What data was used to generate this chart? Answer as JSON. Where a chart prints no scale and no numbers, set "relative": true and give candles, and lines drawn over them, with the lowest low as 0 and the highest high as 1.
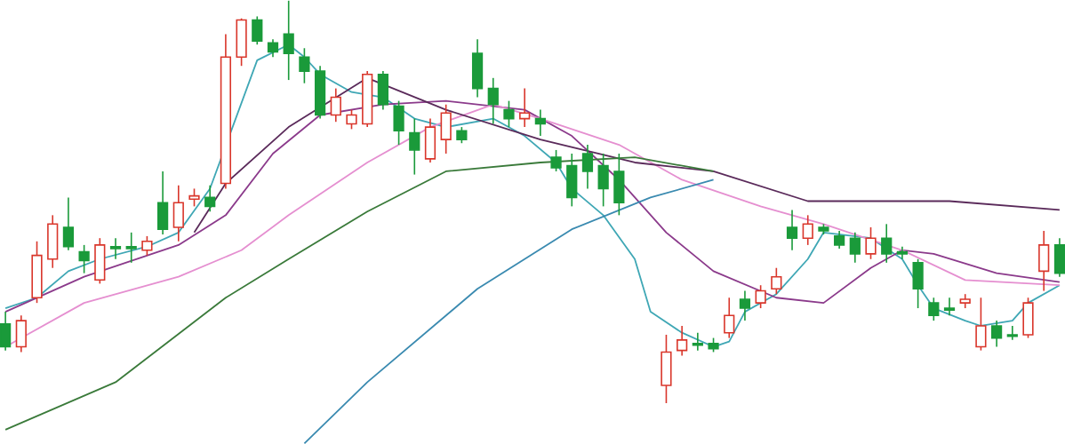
{
  "chart_data": {
    "type": "candlestick",
    "relative": true,
    "categories": [
      null,
      null,
      null,
      null,
      null,
      null,
      null,
      null,
      null,
      null,
      null,
      null,
      null,
      null,
      null,
      null,
      null,
      null,
      null,
      null,
      null,
      null,
      null,
      null,
      null,
      null,
      null,
      null,
      null,
      null,
      null,
      null,
      null,
      null,
      null,
      null,
      null,
      null,
      null,
      null,
      null,
      null,
      null,
      null,
      null,
      null,
      null,
      null,
      null,
      null,
      null,
      null,
      null,
      null,
      null,
      null,
      null,
      null,
      null,
      null,
      null,
      null,
      null,
      null,
      null,
      null,
      null,
      null
    ],
    "ohlc": [
      [
        0.197,
        0.227,
        0.131,
        0.14
      ],
      [
        0.14,
        0.218,
        0.127,
        0.205
      ],
      [
        0.262,
        0.402,
        0.249,
        0.367
      ],
      [
        0.358,
        0.467,
        0.336,
        0.445
      ],
      [
        0.437,
        0.511,
        0.38,
        0.389
      ],
      [
        0.376,
        0.393,
        0.323,
        0.354
      ],
      [
        0.306,
        0.41,
        0.297,
        0.393
      ],
      [
        0.389,
        0.41,
        0.358,
        0.384
      ],
      [
        0.389,
        0.424,
        0.349,
        0.384
      ],
      [
        0.38,
        0.415,
        0.367,
        0.402
      ],
      [
        0.498,
        0.576,
        0.419,
        0.432
      ],
      [
        0.437,
        0.541,
        0.402,
        0.498
      ],
      [
        0.507,
        0.533,
        0.489,
        0.515
      ],
      [
        0.511,
        0.541,
        0.476,
        0.489
      ],
      [
        0.546,
        0.917,
        0.533,
        0.86
      ],
      [
        0.86,
        0.956,
        0.838,
        0.952
      ],
      [
        0.952,
        0.961,
        0.891,
        0.9
      ],
      [
        0.895,
        0.904,
        0.86,
        0.873
      ],
      [
        0.917,
        1.0,
        0.803,
        0.869
      ],
      [
        0.86,
        0.882,
        0.795,
        0.825
      ],
      [
        0.825,
        0.838,
        0.707,
        0.716
      ],
      [
        0.716,
        0.782,
        0.699,
        0.76
      ],
      [
        0.694,
        0.729,
        0.681,
        0.716
      ],
      [
        0.694,
        0.825,
        0.686,
        0.817
      ],
      [
        0.817,
        0.825,
        0.729,
        0.742
      ],
      [
        0.738,
        0.751,
        0.642,
        0.677
      ],
      [
        0.672,
        0.707,
        0.568,
        0.629
      ],
      [
        0.607,
        0.707,
        0.598,
        0.686
      ],
      [
        0.655,
        0.742,
        0.62,
        0.721
      ],
      [
        0.677,
        0.686,
        0.646,
        0.655
      ],
      [
        0.869,
        0.904,
        0.76,
        0.782
      ],
      [
        0.782,
        0.808,
        0.694,
        0.742
      ],
      [
        0.729,
        0.751,
        0.686,
        0.707
      ],
      [
        0.707,
        0.782,
        0.686,
        0.721
      ],
      [
        0.707,
        0.729,
        0.664,
        0.694
      ],
      [
        0.611,
        0.629,
        0.576,
        0.585
      ],
      [
        0.59,
        0.62,
        0.489,
        0.511
      ],
      [
        0.62,
        0.642,
        0.533,
        0.576
      ],
      [
        0.59,
        0.62,
        0.489,
        0.533
      ],
      [
        0.576,
        0.62,
        0.467,
        0.498
      ],
      null,
      null,
      [
        0.044,
        0.17,
        0.0,
        0.127
      ],
      [
        0.131,
        0.192,
        0.118,
        0.157
      ],
      [
        0.148,
        0.175,
        0.131,
        0.144
      ],
      [
        0.148,
        0.162,
        0.127,
        0.135
      ],
      [
        0.175,
        0.262,
        0.162,
        0.218
      ],
      [
        0.258,
        0.279,
        0.205,
        0.236
      ],
      [
        0.249,
        0.293,
        0.236,
        0.279
      ],
      [
        0.284,
        0.336,
        0.271,
        0.314
      ],
      [
        0.437,
        0.48,
        0.38,
        0.41
      ],
      [
        0.41,
        0.467,
        0.393,
        0.445
      ],
      [
        0.437,
        0.445,
        0.419,
        0.428
      ],
      [
        0.415,
        0.428,
        0.384,
        0.393
      ],
      [
        0.41,
        0.424,
        0.349,
        0.371
      ],
      [
        0.371,
        0.437,
        0.358,
        0.41
      ],
      [
        0.41,
        0.445,
        0.349,
        0.371
      ],
      [
        0.376,
        0.389,
        0.358,
        0.371
      ],
      [
        0.349,
        0.358,
        0.236,
        0.284
      ],
      [
        0.249,
        0.262,
        0.205,
        0.218
      ],
      [
        0.236,
        0.262,
        0.218,
        0.231
      ],
      [
        0.249,
        0.271,
        0.236,
        0.258
      ],
      [
        0.14,
        0.262,
        0.131,
        0.192
      ],
      [
        0.192,
        0.205,
        0.14,
        0.162
      ],
      [
        0.17,
        0.192,
        0.157,
        0.166
      ],
      [
        0.17,
        0.262,
        0.162,
        0.249
      ],
      [
        0.328,
        0.428,
        0.279,
        0.393
      ],
      [
        0.393,
        0.41,
        0.314,
        0.323
      ]
    ],
    "colors": [
      "#1a9a3a",
      "#d9362b",
      "#d9362b",
      "#d9362b",
      "#1a9a3a",
      "#1a9a3a",
      "#d9362b",
      "#1a9a3a",
      "#1a9a3a",
      "#d9362b",
      "#1a9a3a",
      "#d9362b",
      "#d9362b",
      "#1a9a3a",
      "#d9362b",
      "#d9362b",
      "#1a9a3a",
      "#1a9a3a",
      "#1a9a3a",
      "#1a9a3a",
      "#1a9a3a",
      "#d9362b",
      "#d9362b",
      "#d9362b",
      "#1a9a3a",
      "#1a9a3a",
      "#1a9a3a",
      "#d9362b",
      "#d9362b",
      "#1a9a3a",
      "#1a9a3a",
      "#1a9a3a",
      "#1a9a3a",
      "#d9362b",
      "#1a9a3a",
      "#1a9a3a",
      "#1a9a3a",
      "#1a9a3a",
      "#1a9a3a",
      "#1a9a3a",
      null,
      null,
      "#d9362b",
      "#d9362b",
      "#1a9a3a",
      "#1a9a3a",
      "#d9362b",
      "#1a9a3a",
      "#d9362b",
      "#d9362b",
      "#1a9a3a",
      "#d9362b",
      "#1a9a3a",
      "#1a9a3a",
      "#1a9a3a",
      "#d9362b",
      "#1a9a3a",
      "#1a9a3a",
      "#1a9a3a",
      "#1a9a3a",
      "#1a9a3a",
      "#d9362b",
      "#d9362b",
      "#1a9a3a",
      "#1a9a3a",
      "#d9362b",
      "#d9362b",
      "#1a9a3a"
    ],
    "series": [
      {
        "type": "line",
        "color": "#3fa7b5",
        "values": [
          0.236,
          null,
          0.262,
          null,
          0.328,
          null,
          0.358,
          null,
          null,
          0.389,
          null,
          0.424,
          null,
          0.533,
          null,
          null,
          0.852,
          null,
          0.891,
          0.86,
          0.817,
          null,
          0.773,
          null,
          0.76,
          null,
          0.707,
          null,
          0.686,
          null,
          null,
          0.707,
          null,
          0.664,
          null,
          0.598,
          0.533,
          null,
          0.467,
          null,
          0.358,
          0.227,
          null,
          0.175,
          null,
          0.14,
          0.153,
          0.227,
          null,
          0.271,
          null,
          0.358,
          0.424,
          null,
          null,
          0.41,
          null,
          0.358,
          0.293,
          0.236,
          null,
          0.205,
          0.192,
          null,
          0.205,
          0.249,
          null,
          0.293
        ]
      },
      {
        "type": "line",
        "color": "#8b3a8b",
        "values": [
          0.227,
          null,
          null,
          null,
          null,
          0.314,
          null,
          null,
          null,
          null,
          null,
          0.393,
          null,
          null,
          0.467,
          null,
          null,
          0.62,
          null,
          null,
          0.716,
          null,
          null,
          null,
          0.742,
          null,
          null,
          null,
          0.751,
          null,
          null,
          null,
          null,
          0.729,
          null,
          null,
          0.664,
          null,
          null,
          0.555,
          null,
          null,
          0.424,
          null,
          null,
          0.328,
          null,
          null,
          null,
          0.262,
          null,
          null,
          0.249,
          null,
          null,
          0.336,
          null,
          0.38,
          null,
          0.371,
          null,
          null,
          null,
          0.323,
          null,
          null,
          null,
          0.301
        ]
      },
      {
        "type": "line",
        "color": "#e58fd0",
        "values": [
          0.14,
          null,
          null,
          null,
          null,
          0.249,
          null,
          null,
          null,
          null,
          null,
          0.314,
          null,
          null,
          null,
          0.38,
          null,
          null,
          0.467,
          null,
          null,
          null,
          null,
          0.598,
          null,
          null,
          null,
          0.686,
          null,
          null,
          null,
          0.742,
          null,
          null,
          0.707,
          null,
          null,
          null,
          null,
          0.642,
          null,
          null,
          null,
          0.555,
          null,
          null,
          null,
          null,
          0.489,
          null,
          null,
          null,
          0.445,
          null,
          null,
          null,
          null,
          0.38,
          null,
          null,
          null,
          0.306,
          null,
          null,
          null,
          null,
          null,
          0.293
        ]
      },
      {
        "type": "line",
        "color": "#5a2a5a",
        "values": [
          null,
          null,
          null,
          null,
          null,
          null,
          null,
          null,
          null,
          null,
          null,
          null,
          0.424,
          null,
          0.546,
          null,
          null,
          null,
          0.686,
          null,
          null,
          null,
          null,
          0.808,
          null,
          null,
          null,
          null,
          0.729,
          null,
          null,
          null,
          null,
          null,
          0.655,
          null,
          null,
          null,
          null,
          null,
          0.598,
          null,
          null,
          null,
          null,
          0.576,
          null,
          null,
          null,
          null,
          null,
          0.502,
          null,
          null,
          null,
          null,
          null,
          null,
          null,
          null,
          0.502,
          null,
          null,
          null,
          null,
          null,
          null,
          0.48
        ]
      },
      {
        "type": "line",
        "color": "#3a7a3a",
        "values": [
          -0.066,
          null,
          null,
          null,
          null,
          null,
          null,
          0.052,
          null,
          null,
          null,
          null,
          null,
          null,
          0.262,
          null,
          null,
          null,
          0.358,
          null,
          null,
          null,
          null,
          0.476,
          null,
          null,
          null,
          null,
          0.576,
          null,
          null,
          null,
          null,
          null,
          0.598,
          null,
          null,
          null,
          null,
          null,
          0.611,
          null,
          null,
          null,
          null,
          0.576,
          null,
          null,
          null,
          null,
          null,
          null,
          null,
          null,
          null,
          null,
          null,
          null,
          null,
          null,
          null,
          null,
          null,
          null,
          null,
          null,
          null,
          null
        ]
      },
      {
        "type": "line",
        "color": "#3a8ab0",
        "values": [
          null,
          null,
          null,
          null,
          null,
          null,
          null,
          null,
          null,
          null,
          null,
          null,
          null,
          null,
          null,
          null,
          null,
          null,
          null,
          -0.1,
          null,
          null,
          null,
          0.052,
          null,
          null,
          null,
          null,
          null,
          null,
          0.284,
          null,
          null,
          null,
          null,
          null,
          0.432,
          null,
          null,
          null,
          null,
          0.511,
          null,
          null,
          null,
          0.555,
          null,
          null,
          null,
          null,
          null,
          null,
          null,
          null,
          null,
          null,
          null,
          null,
          null,
          null,
          null,
          null,
          null,
          null,
          null,
          null,
          null,
          null
        ]
      }
    ]
  }
}
